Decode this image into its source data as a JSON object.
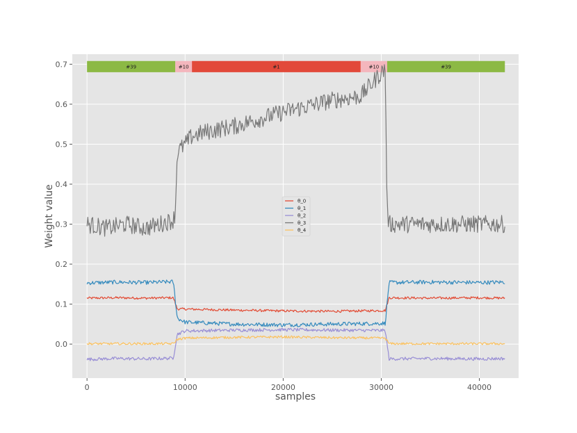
{
  "chart_data": {
    "type": "line",
    "xlabel": "samples",
    "ylabel": "Weight value",
    "xlim": [
      -1500,
      44000
    ],
    "ylim": [
      -0.085,
      0.725
    ],
    "xticks": [
      0,
      10000,
      20000,
      30000,
      40000
    ],
    "xtick_labels": [
      "0",
      "10000",
      "20000",
      "30000",
      "40000"
    ],
    "yticks": [
      0.0,
      0.1,
      0.2,
      0.3,
      0.4,
      0.5,
      0.6,
      0.7
    ],
    "ytick_labels": [
      "0.0",
      "0.1",
      "0.2",
      "0.3",
      "0.4",
      "0.5",
      "0.6",
      "0.7"
    ],
    "grid": true,
    "legend_position": "center",
    "regime_bands": [
      {
        "label": "#39",
        "x_start": 0,
        "x_end": 9000,
        "color": "#8cb944"
      },
      {
        "label": "#10",
        "x_start": 9000,
        "x_end": 10700,
        "color": "#f4b6bd"
      },
      {
        "label": "#1",
        "x_start": 10700,
        "x_end": 27900,
        "color": "#e2493a"
      },
      {
        "label": "#10",
        "x_start": 27900,
        "x_end": 30600,
        "color": "#f4b6bd"
      },
      {
        "label": "#39",
        "x_start": 30600,
        "x_end": 42600,
        "color": "#8cb944"
      }
    ],
    "series": [
      {
        "name": "θ_0",
        "color": "#e24a33",
        "x": [
          0,
          3000,
          6000,
          8800,
          9200,
          15000,
          20000,
          25000,
          30400,
          30800,
          35000,
          40000,
          42600
        ],
        "y": [
          0.115,
          0.116,
          0.115,
          0.116,
          0.088,
          0.085,
          0.083,
          0.082,
          0.084,
          0.116,
          0.115,
          0.116,
          0.115
        ],
        "noise": 0.003
      },
      {
        "name": "θ_1",
        "color": "#348abd",
        "x": [
          0,
          3000,
          6000,
          8800,
          9200,
          10000,
          15000,
          20000,
          25000,
          30400,
          30800,
          35000,
          40000,
          42600
        ],
        "y": [
          0.153,
          0.155,
          0.154,
          0.156,
          0.065,
          0.055,
          0.05,
          0.048,
          0.05,
          0.052,
          0.154,
          0.155,
          0.154,
          0.155
        ],
        "noise": 0.005
      },
      {
        "name": "θ_2",
        "color": "#988ed5",
        "x": [
          0,
          3000,
          6000,
          8800,
          9200,
          10000,
          15000,
          20000,
          25000,
          30400,
          30800,
          35000,
          40000,
          42600
        ],
        "y": [
          -0.038,
          -0.036,
          -0.037,
          -0.035,
          0.025,
          0.033,
          0.035,
          0.036,
          0.035,
          0.034,
          -0.037,
          -0.036,
          -0.037,
          -0.036
        ],
        "noise": 0.004
      },
      {
        "name": "θ_3",
        "color": "#777777",
        "x": [
          0,
          2000,
          4000,
          6000,
          8800,
          9000,
          9200,
          10000,
          10700,
          12000,
          15000,
          20000,
          25000,
          27900,
          30400,
          30600,
          30800,
          35000,
          40000,
          42600
        ],
        "y": [
          0.3,
          0.29,
          0.3,
          0.29,
          0.31,
          0.33,
          0.48,
          0.5,
          0.52,
          0.53,
          0.545,
          0.58,
          0.61,
          0.62,
          0.69,
          0.33,
          0.3,
          0.3,
          0.3,
          0.3
        ],
        "noise": 0.022
      },
      {
        "name": "θ_4",
        "color": "#fbc15e",
        "x": [
          0,
          3000,
          6000,
          8800,
          9200,
          10000,
          15000,
          20000,
          25000,
          30400,
          30800,
          35000,
          40000,
          42600
        ],
        "y": [
          0.001,
          0.001,
          0.001,
          0.001,
          0.012,
          0.015,
          0.017,
          0.018,
          0.016,
          0.015,
          0.001,
          0.001,
          0.001,
          0.001
        ],
        "noise": 0.003
      }
    ]
  }
}
